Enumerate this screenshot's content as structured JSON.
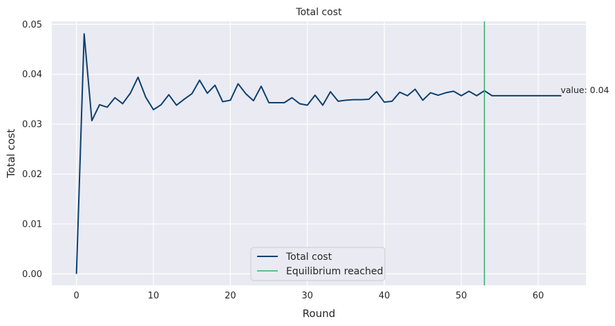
{
  "chart_data": {
    "type": "line",
    "title": "Total cost",
    "xlabel": "Round",
    "ylabel": "Total cost",
    "xlim": [
      -3.2,
      66.2
    ],
    "ylim": [
      -0.0023,
      0.0506
    ],
    "xticks": [
      0,
      10,
      20,
      30,
      40,
      50,
      60
    ],
    "xtick_labels": [
      "0",
      "10",
      "20",
      "30",
      "40",
      "50",
      "60"
    ],
    "yticks": [
      0,
      0.01,
      0.02,
      0.03,
      0.04,
      0.05
    ],
    "ytick_labels": [
      "0.00",
      "0.01",
      "0.02",
      "0.03",
      "0.04",
      "0.05"
    ],
    "grid": true,
    "background": "#eaeaf2",
    "grid_color": "#ffffff",
    "legend_position": "lower center",
    "series": [
      {
        "name": "Total cost",
        "color": "#0b3f6f",
        "x": [
          0,
          1,
          2,
          3,
          4,
          5,
          6,
          7,
          8,
          9,
          10,
          11,
          12,
          13,
          14,
          15,
          16,
          17,
          18,
          19,
          20,
          21,
          22,
          23,
          24,
          25,
          26,
          27,
          28,
          29,
          30,
          31,
          32,
          33,
          34,
          35,
          36,
          37,
          38,
          39,
          40,
          41,
          42,
          43,
          44,
          45,
          46,
          47,
          48,
          49,
          50,
          51,
          52,
          53,
          54,
          55,
          56,
          57,
          58,
          59,
          60,
          61,
          62,
          63
        ],
        "y": [
          0.0,
          0.0481,
          0.0307,
          0.0339,
          0.0334,
          0.0353,
          0.0341,
          0.0362,
          0.0394,
          0.0354,
          0.0329,
          0.0339,
          0.0359,
          0.0338,
          0.035,
          0.0361,
          0.0388,
          0.0362,
          0.0378,
          0.0345,
          0.0348,
          0.0381,
          0.0361,
          0.0347,
          0.0376,
          0.0343,
          0.0343,
          0.0343,
          0.0353,
          0.0341,
          0.0338,
          0.0358,
          0.0338,
          0.0365,
          0.0346,
          0.0348,
          0.0349,
          0.0349,
          0.035,
          0.0365,
          0.0344,
          0.0346,
          0.0364,
          0.0357,
          0.037,
          0.0348,
          0.0363,
          0.0358,
          0.0363,
          0.0366,
          0.0357,
          0.0366,
          0.0357,
          0.0367,
          0.0357,
          0.0357,
          0.0357,
          0.0357,
          0.0357,
          0.0357,
          0.0357,
          0.0357,
          0.0357,
          0.0357
        ]
      }
    ],
    "vline": {
      "name": "Equilibrium reached",
      "x": 53,
      "color": "#2db26b"
    },
    "annotation": {
      "text": "value: 0.04",
      "x": 63,
      "y": 0.0357
    }
  }
}
